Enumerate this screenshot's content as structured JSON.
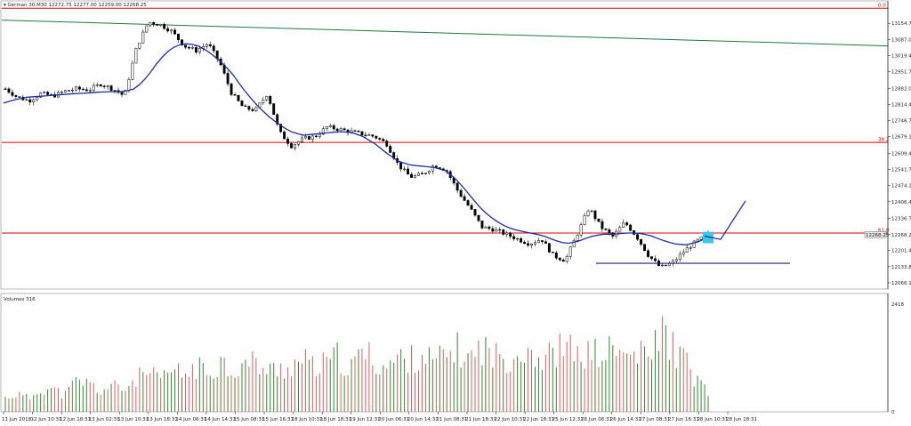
{
  "header": {
    "symbol_line": "▾ German 30,M30  12272.75 12277.00 12259.00 12268.25"
  },
  "colors": {
    "background": "#ffffff",
    "bull": "#2e8b2e",
    "bear": "#e05c5c",
    "candle_body_bull": "#ffffff",
    "candle_body_bear": "#000000",
    "fib_line": "#e00000",
    "trendline": "#1f7a3a",
    "moving_average": "#1c2fa8",
    "support_line": "#1c1c7a",
    "projection": "#1c2fa8",
    "highlight": "#38c8e8",
    "price_box": "#e6e6e6"
  },
  "chart_data": [
    {
      "type": "candlestick",
      "title": "",
      "ylim": [
        12040,
        13230
      ],
      "y_ticks": [
        "13154.70",
        "13087.00",
        "13019.40",
        "12951.75",
        "12882.05",
        "12814.40",
        "12746.75",
        "12679.10",
        "12609.40",
        "12541.75",
        "12474.10",
        "12406.45",
        "12336.75",
        "12268.25",
        "12201.45",
        "12133.80",
        "12066.15"
      ],
      "x_ticks": [
        "11 Jun 2018",
        "12 Jun 10:31",
        "12 Jun 18:31",
        "13 Jun 02:31",
        "13 Jun 10:31",
        "13 Jun 18:31",
        "14 Jun 06:31",
        "14 Jun 14:31",
        "15 Jun 08:31",
        "15 Jun 16:31",
        "18 Jun 10:31",
        "18 Jun 18:31",
        "19 Jun 12:31",
        "20 Jun 06:31",
        "20 Jun 14:31",
        "21 Jun 08:31",
        "21 Jun 18:31",
        "22 Jun 10:31",
        "22 Jun 18:31",
        "25 Jun 12:31",
        "26 Jun 06:31",
        "26 Jun 14:31",
        "27 Jun 08:31",
        "27 Jun 16:31",
        "28 Jun 10:31",
        "28 Jun 18:31"
      ],
      "current_price_label": "12268.25",
      "horizontal_levels": [
        {
          "label": "0.0",
          "price": 13218
        },
        {
          "label": "38.2",
          "price": 12655
        },
        {
          "label": "61.8",
          "price": 12275
        }
      ],
      "support_level": 12148,
      "trendline_prices": [
        13168,
        13060
      ],
      "price_path": [
        12880,
        12845,
        12830,
        12860,
        12850,
        12870,
        12880,
        12875,
        12900,
        12880,
        12850,
        13050,
        13160,
        13150,
        13120,
        13060,
        13040,
        13070,
        12990,
        12860,
        12800,
        12790,
        12860,
        12700,
        12640,
        12670,
        12680,
        12720,
        12710,
        12700,
        12690,
        12680,
        12650,
        12560,
        12510,
        12520,
        12560,
        12540,
        12450,
        12380,
        12300,
        12290,
        12270,
        12250,
        12230,
        12250,
        12180,
        12160,
        12270,
        12380,
        12300,
        12260,
        12320,
        12260,
        12180,
        12130,
        12150,
        12200,
        12240,
        12268
      ],
      "moving_average_path": [
        12820,
        12835,
        12845,
        12848,
        12852,
        12856,
        12860,
        12862,
        12866,
        12868,
        12868,
        12880,
        12930,
        13000,
        13050,
        13070,
        13065,
        13040,
        13000,
        12950,
        12880,
        12820,
        12770,
        12730,
        12700,
        12685,
        12690,
        12695,
        12700,
        12698,
        12680,
        12650,
        12610,
        12575,
        12560,
        12555,
        12550,
        12535,
        12490,
        12430,
        12370,
        12330,
        12300,
        12285,
        12275,
        12265,
        12245,
        12230,
        12240,
        12260,
        12270,
        12270,
        12275,
        12275,
        12265,
        12245,
        12230,
        12225,
        12238,
        12260
      ],
      "projection_path": [
        [
          12268,
          12262
        ],
        [
          12285,
          12248
        ],
        [
          12410,
          12410
        ]
      ]
    },
    {
      "type": "bar",
      "title": "Volumes 316",
      "ylim": [
        0,
        2500
      ],
      "y_ticks": [
        "2418",
        "0"
      ],
      "volume_path": [
        400,
        520,
        380,
        700,
        650,
        480,
        900,
        820,
        600,
        750,
        640,
        980,
        1100,
        900,
        1200,
        1050,
        1300,
        1100,
        1500,
        1200,
        1350,
        1450,
        1150,
        1250,
        1320,
        1500,
        1250,
        1400,
        1600,
        1200,
        1800,
        1450,
        1300,
        1550,
        1500,
        1700,
        1400,
        1650,
        1800,
        1500,
        1900,
        1600,
        1550,
        1700,
        1900,
        1450,
        1700,
        1900,
        1600,
        1700,
        1650,
        1800,
        1600,
        1700,
        1500,
        2418,
        1900,
        1500,
        900,
        600
      ]
    }
  ]
}
